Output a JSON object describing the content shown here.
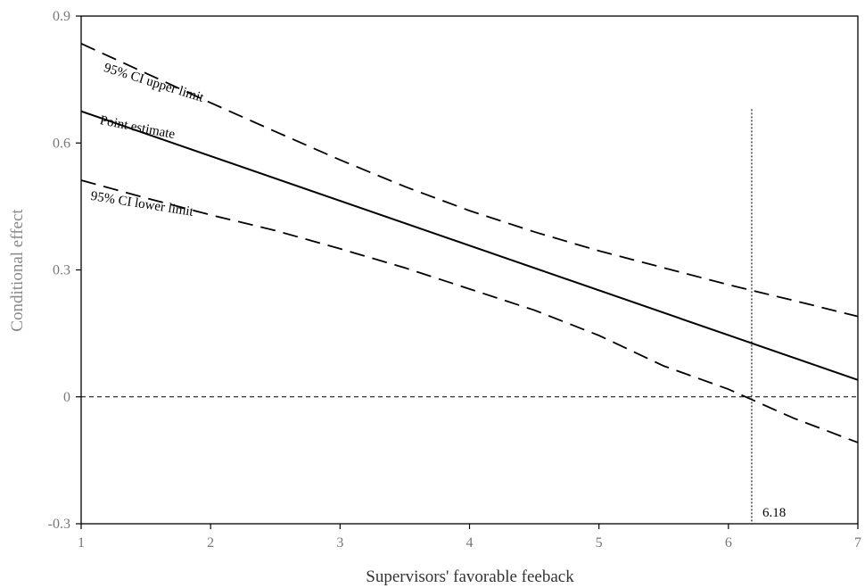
{
  "chart_data": {
    "type": "line",
    "title": "",
    "xlabel": "Supervisors' favorable feeback",
    "ylabel": "Conditional effect",
    "xlim": [
      1,
      7
    ],
    "ylim": [
      -0.3,
      0.9
    ],
    "x_ticks": [
      1,
      2,
      3,
      4,
      5,
      6,
      7
    ],
    "y_ticks": [
      -0.3,
      0,
      0.3,
      0.6,
      0.9
    ],
    "y_tick_labels": [
      "-0.3",
      "0",
      "0.3",
      "0.6",
      "0.9"
    ],
    "grid": false,
    "legend": "none",
    "series": [
      {
        "name": "95% CI upper limit",
        "style": "dashed",
        "x": [
          1,
          1.5,
          2,
          2.5,
          3,
          3.5,
          4,
          4.5,
          5,
          5.5,
          6,
          6.5,
          7
        ],
        "y": [
          0.835,
          0.765,
          0.695,
          0.627,
          0.56,
          0.497,
          0.44,
          0.39,
          0.345,
          0.305,
          0.265,
          0.228,
          0.19
        ]
      },
      {
        "name": "Point estimate",
        "style": "solid",
        "x": [
          1,
          7
        ],
        "y": [
          0.675,
          0.04
        ]
      },
      {
        "name": "95% CI lower limit",
        "style": "dashed",
        "x": [
          1,
          1.5,
          2,
          2.5,
          3,
          3.5,
          4,
          4.5,
          5,
          5.5,
          6,
          6.5,
          7
        ],
        "y": [
          0.512,
          0.47,
          0.43,
          0.393,
          0.35,
          0.305,
          0.255,
          0.205,
          0.145,
          0.073,
          0.018,
          -0.05,
          -0.108
        ]
      }
    ],
    "reference_lines": {
      "horizontal_y": 0,
      "vertical_x": 6.18,
      "vertical_label": "6.18"
    }
  }
}
